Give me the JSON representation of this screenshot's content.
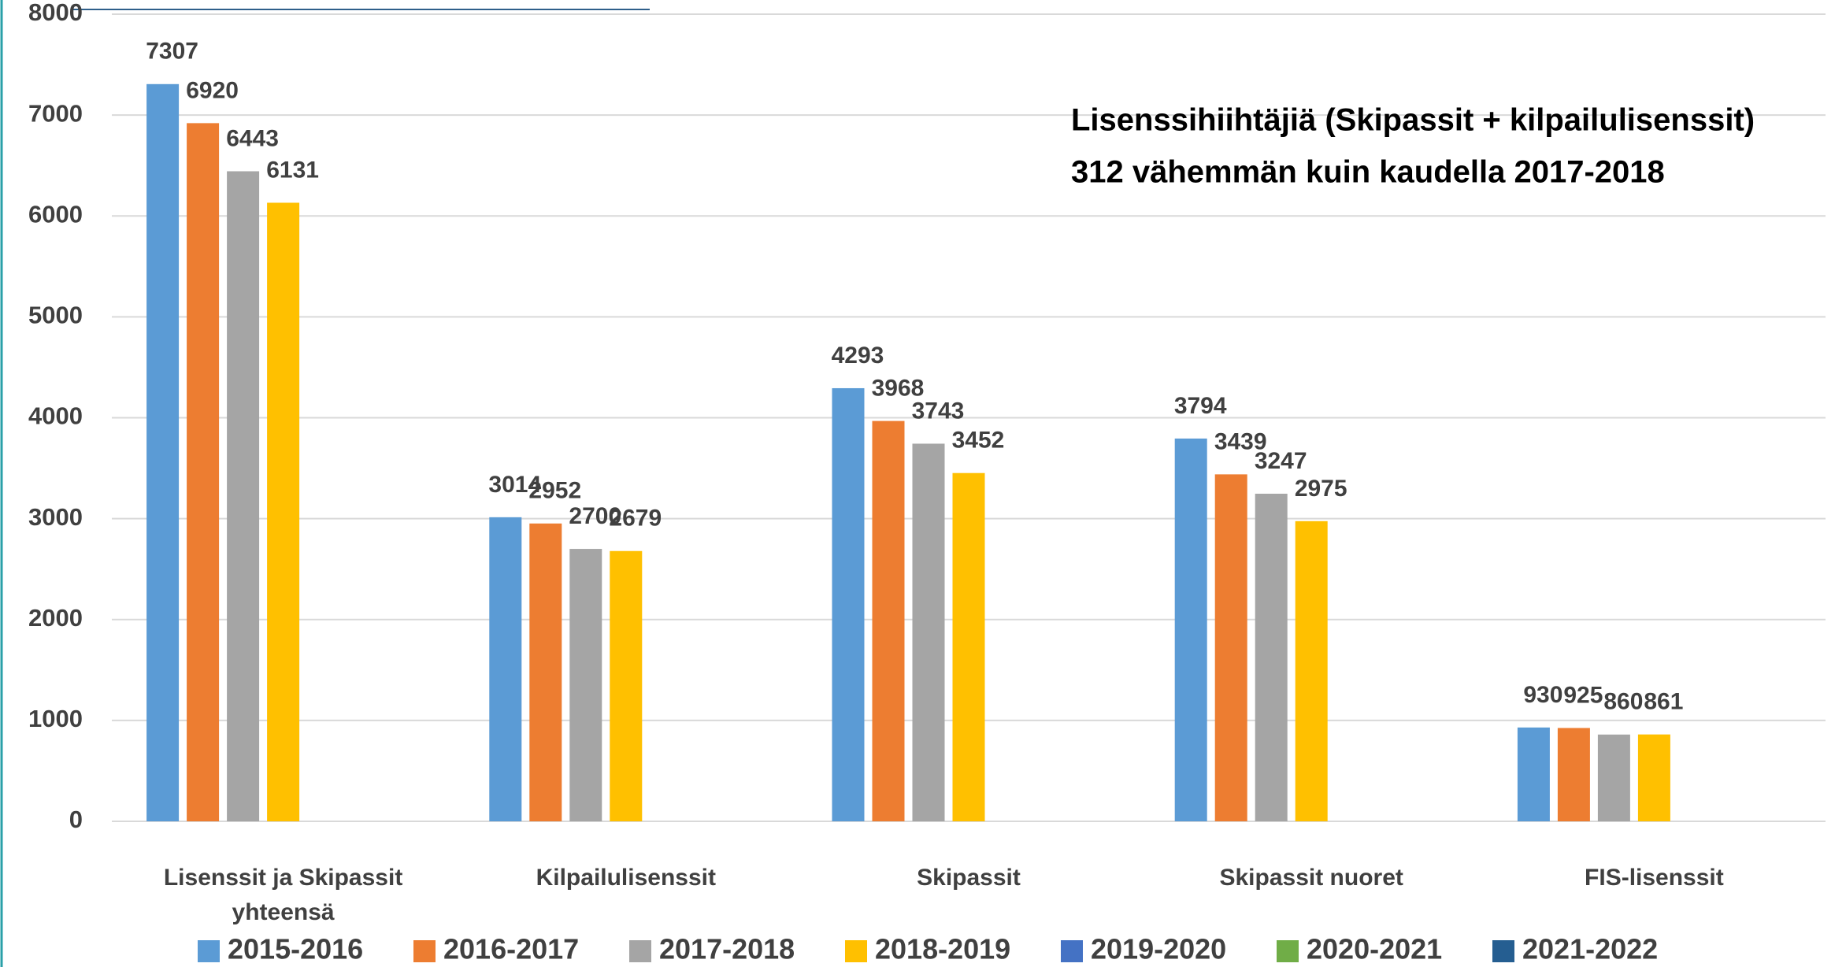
{
  "chart_data": {
    "type": "bar",
    "annotations": [
      "Lisenssihiihtäjiä (Skipassit + kilpailulisenssit)",
      "312 vähemmän kuin kaudella 2017-2018"
    ],
    "categories": [
      "Lisenssit ja Skipassit yhteensä",
      "Kilpailulisenssit",
      "Skipassit",
      "Skipassit nuoret",
      "FIS-lisenssit"
    ],
    "series": [
      {
        "name": "2015-2016",
        "color": "#5b9bd5",
        "values": [
          7307,
          3014,
          4293,
          3794,
          930
        ]
      },
      {
        "name": "2016-2017",
        "color": "#ed7d31",
        "values": [
          6920,
          2952,
          3968,
          3439,
          925
        ]
      },
      {
        "name": "2017-2018",
        "color": "#a5a5a5",
        "values": [
          6443,
          2700,
          3743,
          3247,
          860
        ]
      },
      {
        "name": "2018-2019",
        "color": "#ffc000",
        "values": [
          6131,
          2679,
          3452,
          2975,
          861
        ]
      },
      {
        "name": "2019-2020",
        "color": "#4472c4",
        "values": [
          null,
          null,
          null,
          null,
          null
        ]
      },
      {
        "name": "2020-2021",
        "color": "#70ad47",
        "values": [
          null,
          null,
          null,
          null,
          null
        ]
      },
      {
        "name": "2021-2022",
        "color": "#255e91",
        "values": [
          null,
          null,
          null,
          null,
          null
        ]
      }
    ],
    "ylim": [
      0,
      8000
    ],
    "yticks": [
      0,
      1000,
      2000,
      3000,
      4000,
      5000,
      6000,
      7000,
      8000
    ],
    "grid": true,
    "legend": "bottom"
  }
}
